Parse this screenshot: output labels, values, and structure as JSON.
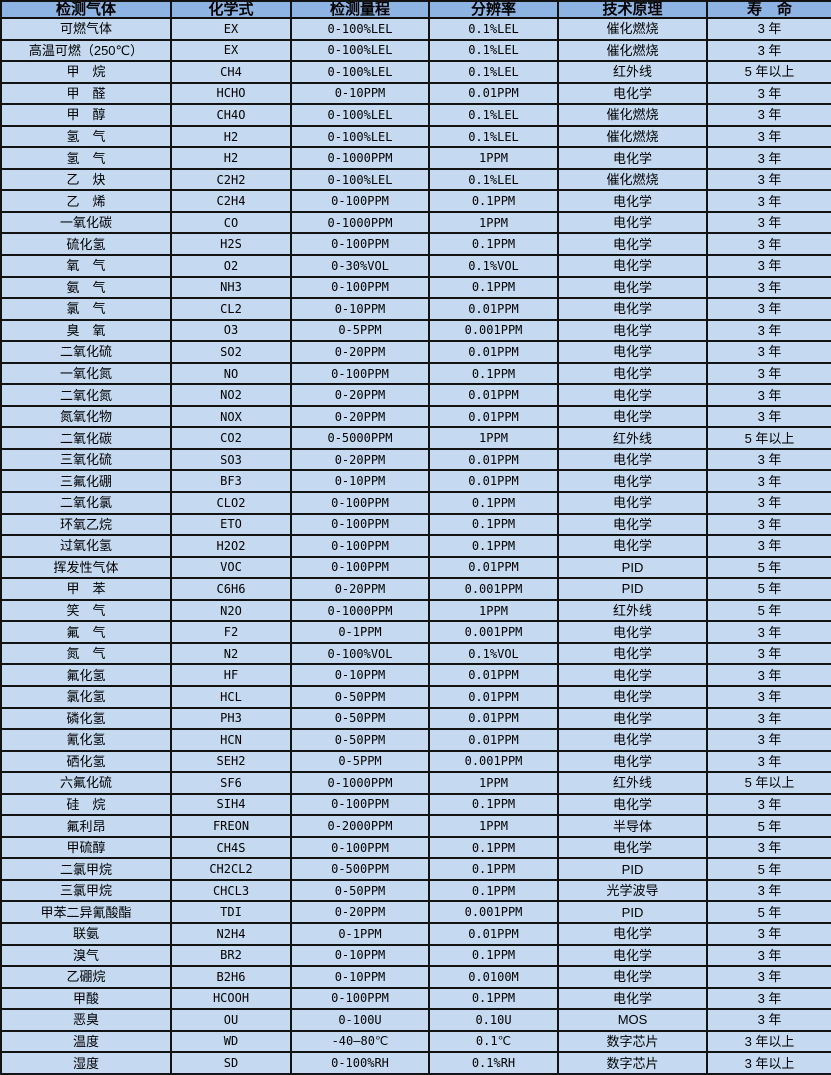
{
  "colors": {
    "header_bg": "#8eb4e3",
    "row_bg": "#c5daf1",
    "border": "#131313",
    "text": "#000000"
  },
  "table": {
    "column_keys": [
      "gas",
      "formula",
      "range",
      "resolution",
      "principle",
      "lifespan"
    ],
    "columns": [
      "检测气体",
      "化学式",
      "检测量程",
      "分辨率",
      "技术原理",
      "寿　命"
    ],
    "rows": [
      [
        "可燃气体",
        "EX",
        "0-100%LEL",
        "0.1%LEL",
        "催化燃烧",
        "3 年"
      ],
      [
        "高温可燃（250℃）",
        "EX",
        "0-100%LEL",
        "0.1%LEL",
        "催化燃烧",
        "3 年"
      ],
      [
        "甲　烷",
        "CH4",
        "0-100%LEL",
        "0.1%LEL",
        "红外线",
        "5 年以上"
      ],
      [
        "甲　醛",
        "HCHO",
        "0-10PPM",
        "0.01PPM",
        "电化学",
        "3 年"
      ],
      [
        "甲　醇",
        "CH4O",
        "0-100%LEL",
        "0.1%LEL",
        "催化燃烧",
        "3 年"
      ],
      [
        "氢　气",
        "H2",
        "0-100%LEL",
        "0.1%LEL",
        "催化燃烧",
        "3 年"
      ],
      [
        "氢　气",
        "H2",
        "0-1000PPM",
        "1PPM",
        "电化学",
        "3 年"
      ],
      [
        "乙　炔",
        "C2H2",
        "0-100%LEL",
        "0.1%LEL",
        "催化燃烧",
        "3 年"
      ],
      [
        "乙　烯",
        "C2H4",
        "0-100PPM",
        "0.1PPM",
        "电化学",
        "3 年"
      ],
      [
        "一氧化碳",
        "CO",
        "0-1000PPM",
        "1PPM",
        "电化学",
        "3 年"
      ],
      [
        "硫化氢",
        "H2S",
        "0-100PPM",
        "0.1PPM",
        "电化学",
        "3 年"
      ],
      [
        "氧　气",
        "O2",
        "0-30%VOL",
        "0.1%VOL",
        "电化学",
        "3 年"
      ],
      [
        "氨　气",
        "NH3",
        "0-100PPM",
        "0.1PPM",
        "电化学",
        "3 年"
      ],
      [
        "氯　气",
        "CL2",
        "0-10PPM",
        "0.01PPM",
        "电化学",
        "3 年"
      ],
      [
        "臭　氧",
        "O3",
        "0-5PPM",
        "0.001PPM",
        "电化学",
        "3 年"
      ],
      [
        "二氧化硫",
        "SO2",
        "0-20PPM",
        "0.01PPM",
        "电化学",
        "3 年"
      ],
      [
        "一氧化氮",
        "NO",
        "0-100PPM",
        "0.1PPM",
        "电化学",
        "3 年"
      ],
      [
        "二氧化氮",
        "NO2",
        "0-20PPM",
        "0.01PPM",
        "电化学",
        "3 年"
      ],
      [
        "氮氧化物",
        "NOX",
        "0-20PPM",
        "0.01PPM",
        "电化学",
        "3 年"
      ],
      [
        "二氧化碳",
        "CO2",
        "0-5000PPM",
        "1PPM",
        "红外线",
        "5 年以上"
      ],
      [
        "三氧化硫",
        "SO3",
        "0-20PPM",
        "0.01PPM",
        "电化学",
        "3 年"
      ],
      [
        "三氟化硼",
        "BF3",
        "0-10PPM",
        "0.01PPM",
        "电化学",
        "3 年"
      ],
      [
        "二氧化氯",
        "CLO2",
        "0-100PPM",
        "0.1PPM",
        "电化学",
        "3 年"
      ],
      [
        "环氧乙烷",
        "ETO",
        "0-100PPM",
        "0.1PPM",
        "电化学",
        "3 年"
      ],
      [
        "过氧化氢",
        "H2O2",
        "0-100PPM",
        "0.1PPM",
        "电化学",
        "3 年"
      ],
      [
        "挥发性气体",
        "VOC",
        "0-100PPM",
        "0.01PPM",
        "PID",
        "5 年"
      ],
      [
        "甲　苯",
        "C6H6",
        "0-20PPM",
        "0.001PPM",
        "PID",
        "5 年"
      ],
      [
        "笑　气",
        "N2O",
        "0-1000PPM",
        "1PPM",
        "红外线",
        "5 年"
      ],
      [
        "氟　气",
        "F2",
        "0-1PPM",
        "0.001PPM",
        "电化学",
        "3 年"
      ],
      [
        "氮　气",
        "N2",
        "0-100%VOL",
        "0.1%VOL",
        "电化学",
        "3 年"
      ],
      [
        "氟化氢",
        "HF",
        "0-10PPM",
        "0.01PPM",
        "电化学",
        "3 年"
      ],
      [
        "氯化氢",
        "HCL",
        "0-50PPM",
        "0.01PPM",
        "电化学",
        "3 年"
      ],
      [
        "磷化氢",
        "PH3",
        "0-50PPM",
        "0.01PPM",
        "电化学",
        "3 年"
      ],
      [
        "氰化氢",
        "HCN",
        "0-50PPM",
        "0.01PPM",
        "电化学",
        "3 年"
      ],
      [
        "硒化氢",
        "SEH2",
        "0-5PPM",
        "0.001PPM",
        "电化学",
        "3 年"
      ],
      [
        "六氟化硫",
        "SF6",
        "0-1000PPM",
        "1PPM",
        "红外线",
        "5 年以上"
      ],
      [
        "硅　烷",
        "SIH4",
        "0-100PPM",
        "0.1PPM",
        "电化学",
        "3 年"
      ],
      [
        "氟利昂",
        "FREON",
        "0-2000PPM",
        "1PPM",
        "半导体",
        "5 年"
      ],
      [
        "甲硫醇",
        "CH4S",
        "0-100PPM",
        "0.1PPM",
        "电化学",
        "3 年"
      ],
      [
        "二氯甲烷",
        "CH2CL2",
        "0-500PPM",
        "0.1PPM",
        "PID",
        "5 年"
      ],
      [
        "三氯甲烷",
        "CHCL3",
        "0-50PPM",
        "0.1PPM",
        "光学波导",
        "3 年"
      ],
      [
        "甲苯二异氰酸酯",
        "TDI",
        "0-20PPM",
        "0.001PPM",
        "PID",
        "5 年"
      ],
      [
        "联氨",
        "N2H4",
        "0-1PPM",
        "0.01PPM",
        "电化学",
        "3 年"
      ],
      [
        "溴气",
        "BR2",
        "0-10PPM",
        "0.1PPM",
        "电化学",
        "3 年"
      ],
      [
        "乙硼烷",
        "B2H6",
        "0-10PPM",
        "0.0100M",
        "电化学",
        "3 年"
      ],
      [
        "甲酸",
        "HCOOH",
        "0-100PPM",
        "0.1PPM",
        "电化学",
        "3 年"
      ],
      [
        "恶臭",
        "OU",
        "0-100U",
        "0.10U",
        "MOS",
        "3 年"
      ],
      [
        "温度",
        "WD",
        "-40—80℃",
        "0.1℃",
        "数字芯片",
        "3 年以上"
      ],
      [
        "湿度",
        "SD",
        "0-100%RH",
        "0.1%RH",
        "数字芯片",
        "3 年以上"
      ]
    ]
  }
}
